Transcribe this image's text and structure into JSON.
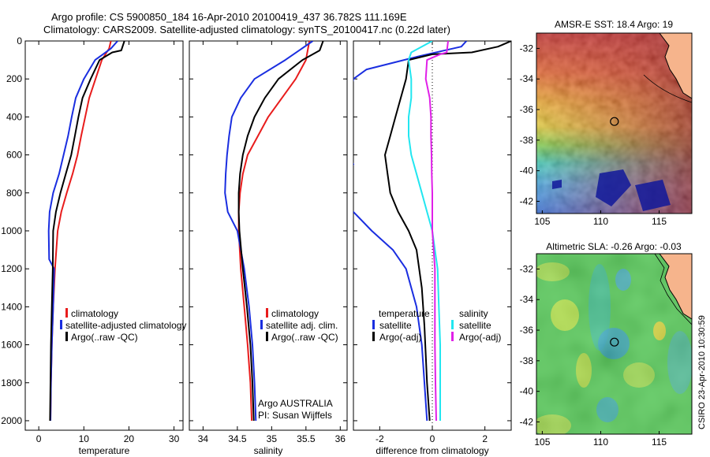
{
  "header": {
    "line1": "Argo profile: CS 5900850_184 16-Apr-2010 20100419_437 36.782S 111.169E",
    "line2": "Climatology: CARS2009. Satellite-adjusted climatology: synTS_20100417.nc (0.22d later)"
  },
  "side_label": "CSIRO 23-Apr-2010 10:30:59",
  "colors": {
    "climatology": "#e81c1c",
    "satellite": "#1a2ee0",
    "argo": "#000000",
    "satellite_salinity": "#22e6f0",
    "argo_salinity_adj": "#e020e8"
  },
  "chart_data": [
    {
      "id": "temperature-profile",
      "type": "line",
      "xlabel": "temperature",
      "ylabel": "",
      "xlim": [
        -3,
        32
      ],
      "ylim": [
        2050,
        0
      ],
      "xticks": [
        0,
        10,
        20,
        30
      ],
      "yticks": [
        0,
        200,
        400,
        600,
        800,
        1000,
        1200,
        1400,
        1600,
        1800,
        2000
      ],
      "legend": [
        "climatology",
        "satellite-adjusted climatology",
        "Argo(..raw -QC)"
      ],
      "series": [
        {
          "name": "climatology",
          "color": "#e81c1c",
          "points": [
            [
              16.0,
              0
            ],
            [
              15.6,
              40
            ],
            [
              14.0,
              100
            ],
            [
              12.6,
              200
            ],
            [
              11.2,
              300
            ],
            [
              10.3,
              400
            ],
            [
              9.4,
              500
            ],
            [
              8.6,
              600
            ],
            [
              7.5,
              700
            ],
            [
              6.2,
              800
            ],
            [
              5.0,
              900
            ],
            [
              4.2,
              1000
            ],
            [
              3.6,
              1200
            ],
            [
              3.2,
              1400
            ],
            [
              2.9,
              1600
            ],
            [
              2.7,
              1800
            ],
            [
              2.6,
              2000
            ]
          ]
        },
        {
          "name": "satellite-adjusted climatology",
          "color": "#1a2ee0",
          "points": [
            [
              17.5,
              0
            ],
            [
              16.0,
              40
            ],
            [
              12.5,
              100
            ],
            [
              10.0,
              200
            ],
            [
              8.2,
              300
            ],
            [
              7.3,
              400
            ],
            [
              6.5,
              500
            ],
            [
              5.5,
              600
            ],
            [
              4.5,
              700
            ],
            [
              3.2,
              800
            ],
            [
              2.4,
              900
            ],
            [
              2.2,
              1000
            ],
            [
              2.3,
              1150
            ],
            [
              3.4,
              1200
            ],
            [
              3.2,
              1400
            ],
            [
              2.9,
              1600
            ],
            [
              2.7,
              1800
            ],
            [
              2.6,
              2000
            ]
          ]
        },
        {
          "name": "Argo(..raw -QC)",
          "color": "#000000",
          "points": [
            [
              19.0,
              0
            ],
            [
              18.3,
              50
            ],
            [
              16.3,
              60
            ],
            [
              13.5,
              100
            ],
            [
              11.5,
              200
            ],
            [
              9.7,
              300
            ],
            [
              8.8,
              400
            ],
            [
              8.0,
              500
            ],
            [
              7.2,
              600
            ],
            [
              6.0,
              700
            ],
            [
              4.8,
              800
            ],
            [
              3.8,
              900
            ],
            [
              3.2,
              1000
            ],
            [
              3.1,
              1200
            ],
            [
              2.9,
              1400
            ],
            [
              2.7,
              1600
            ],
            [
              2.6,
              1800
            ],
            [
              2.5,
              2000
            ]
          ]
        }
      ]
    },
    {
      "id": "salinity-profile",
      "type": "line",
      "xlabel": "salinity",
      "ylabel": "",
      "xlim": [
        33.8,
        36.1
      ],
      "ylim": [
        2050,
        0
      ],
      "xticks": [
        34,
        34.5,
        35,
        35.5,
        36
      ],
      "yticks": [
        0,
        200,
        400,
        600,
        800,
        1000,
        1200,
        1400,
        1600,
        1800,
        2000
      ],
      "legend": [
        "climatology",
        "satellite adj. clim.",
        "Argo(..raw -QC)"
      ],
      "series": [
        {
          "name": "climatology",
          "color": "#e81c1c",
          "points": [
            [
              35.55,
              0
            ],
            [
              35.5,
              100
            ],
            [
              35.35,
              200
            ],
            [
              35.15,
              300
            ],
            [
              34.95,
              400
            ],
            [
              34.8,
              500
            ],
            [
              34.65,
              600
            ],
            [
              34.58,
              700
            ],
            [
              34.54,
              800
            ],
            [
              34.52,
              900
            ],
            [
              34.52,
              1000
            ],
            [
              34.55,
              1200
            ],
            [
              34.6,
              1400
            ],
            [
              34.65,
              1600
            ],
            [
              34.69,
              1800
            ],
            [
              34.71,
              2000
            ]
          ]
        },
        {
          "name": "satellite adj. clim.",
          "color": "#1a2ee0",
          "points": [
            [
              35.6,
              0
            ],
            [
              35.2,
              100
            ],
            [
              34.75,
              200
            ],
            [
              34.55,
              300
            ],
            [
              34.42,
              400
            ],
            [
              34.38,
              500
            ],
            [
              34.35,
              600
            ],
            [
              34.33,
              700
            ],
            [
              34.32,
              800
            ],
            [
              34.36,
              900
            ],
            [
              34.5,
              1000
            ],
            [
              34.6,
              1200
            ],
            [
              34.67,
              1400
            ],
            [
              34.72,
              1600
            ],
            [
              34.75,
              1800
            ],
            [
              34.77,
              2000
            ]
          ]
        },
        {
          "name": "Argo(..raw -QC)",
          "color": "#000000",
          "points": [
            [
              35.75,
              0
            ],
            [
              35.7,
              50
            ],
            [
              35.45,
              100
            ],
            [
              35.1,
              200
            ],
            [
              34.9,
              300
            ],
            [
              34.75,
              400
            ],
            [
              34.65,
              500
            ],
            [
              34.58,
              600
            ],
            [
              34.54,
              700
            ],
            [
              34.52,
              800
            ],
            [
              34.52,
              900
            ],
            [
              34.53,
              1000
            ],
            [
              34.58,
              1200
            ],
            [
              34.64,
              1400
            ],
            [
              34.69,
              1600
            ],
            [
              34.72,
              1800
            ],
            [
              34.74,
              2000
            ]
          ]
        }
      ]
    },
    {
      "id": "difference-profile",
      "type": "line",
      "xlabel": "difference from climatology",
      "ylabel": "",
      "xlim": [
        -3.0,
        3.0
      ],
      "ylim": [
        2050,
        0
      ],
      "xticks": [
        -2,
        0,
        2
      ],
      "yticks": [
        0,
        200,
        400,
        600,
        800,
        1000,
        1200,
        1400,
        1600,
        1800,
        2000
      ],
      "legend": [
        "temperature",
        "satellite",
        "Argo(-adj)",
        "salinity",
        "satellite",
        "Argo(-adj)"
      ],
      "series": [
        {
          "name": "temperature satellite",
          "color": "#1a2ee0",
          "points": [
            [
              1.3,
              0
            ],
            [
              1.1,
              30
            ],
            [
              -0.5,
              80
            ],
            [
              -2.5,
              150
            ],
            [
              -3.0,
              200
            ],
            [
              -3.2,
              300
            ],
            [
              -3.3,
              500
            ],
            [
              -3.2,
              600
            ],
            [
              -3.0,
              650
            ],
            [
              -3.5,
              700
            ],
            [
              -3.6,
              800
            ],
            [
              -3.0,
              900
            ],
            [
              -2.3,
              1000
            ],
            [
              -1.5,
              1100
            ],
            [
              -1.0,
              1200
            ],
            [
              -0.6,
              1400
            ],
            [
              -0.4,
              1600
            ],
            [
              -0.3,
              1800
            ],
            [
              -0.2,
              2000
            ]
          ]
        },
        {
          "name": "temperature Argo(-adj)",
          "color": "#000000",
          "points": [
            [
              3.0,
              0
            ],
            [
              2.5,
              30
            ],
            [
              1.5,
              60
            ],
            [
              0.0,
              70
            ],
            [
              -0.9,
              100
            ],
            [
              -1.0,
              200
            ],
            [
              -1.2,
              300
            ],
            [
              -1.4,
              400
            ],
            [
              -1.6,
              500
            ],
            [
              -1.8,
              600
            ],
            [
              -1.7,
              700
            ],
            [
              -1.6,
              800
            ],
            [
              -1.3,
              900
            ],
            [
              -0.9,
              1000
            ],
            [
              -0.6,
              1100
            ],
            [
              -0.4,
              1300
            ],
            [
              -0.3,
              1500
            ],
            [
              -0.2,
              1800
            ],
            [
              -0.1,
              2000
            ]
          ]
        },
        {
          "name": "salinity satellite",
          "color": "#22e6f0",
          "points": [
            [
              0.0,
              0
            ],
            [
              -0.8,
              60
            ],
            [
              -0.9,
              100
            ],
            [
              -0.8,
              200
            ],
            [
              -0.8,
              300
            ],
            [
              -0.9,
              400
            ],
            [
              -0.9,
              500
            ],
            [
              -0.8,
              600
            ],
            [
              -0.6,
              700
            ],
            [
              -0.4,
              800
            ],
            [
              -0.2,
              900
            ],
            [
              0.0,
              1000
            ],
            [
              0.1,
              1100
            ],
            [
              0.2,
              1200
            ],
            [
              0.25,
              1400
            ],
            [
              0.3,
              1600
            ],
            [
              0.3,
              1800
            ],
            [
              0.3,
              2000
            ]
          ]
        },
        {
          "name": "salinity Argo(-adj)",
          "color": "#e020e8",
          "points": [
            [
              0.6,
              0
            ],
            [
              0.55,
              60
            ],
            [
              0.3,
              70
            ],
            [
              -0.2,
              100
            ],
            [
              -0.25,
              200
            ],
            [
              -0.1,
              300
            ],
            [
              -0.05,
              400
            ],
            [
              -0.05,
              500
            ],
            [
              -0.03,
              600
            ],
            [
              -0.02,
              700
            ],
            [
              0.0,
              800
            ],
            [
              0.0,
              900
            ],
            [
              0.0,
              1000
            ],
            [
              0.05,
              1100
            ],
            [
              0.1,
              1200
            ],
            [
              0.1,
              1400
            ],
            [
              0.1,
              1600
            ],
            [
              0.12,
              1800
            ],
            [
              0.15,
              2000
            ]
          ]
        }
      ]
    },
    {
      "id": "sst-map",
      "type": "heatmap",
      "title": "AMSR-E SST: 18.4 Argo: 19",
      "xlim": [
        104.5,
        117.8
      ],
      "ylim": [
        -42.8,
        -31.0
      ],
      "xticks": [
        105,
        110,
        115
      ],
      "yticks": [
        -32,
        -34,
        -36,
        -38,
        -40,
        -42
      ],
      "marker": {
        "lon": 111.169,
        "lat": -36.782
      }
    },
    {
      "id": "sla-map",
      "type": "heatmap",
      "title": "Altimetric SLA: -0.26 Argo: -0.03",
      "xlim": [
        104.5,
        117.8
      ],
      "ylim": [
        -42.8,
        -31.0
      ],
      "xticks": [
        105,
        110,
        115
      ],
      "yticks": [
        -32,
        -34,
        -36,
        -38,
        -40,
        -42
      ],
      "marker": {
        "lon": 111.169,
        "lat": -36.782
      }
    }
  ],
  "panel2_notes": {
    "line1": "Argo AUSTRALIA",
    "line2": "PI: Susan Wijffels"
  }
}
